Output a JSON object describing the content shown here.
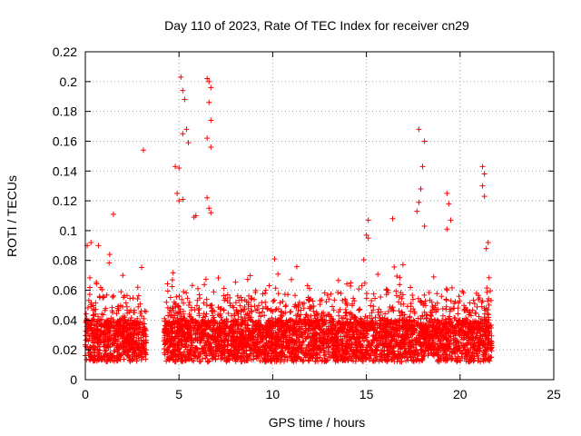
{
  "chart_data": {
    "type": "scatter",
    "title": "Day 110 of 2023, Rate Of TEC Index for receiver cn29",
    "xlabel": "GPS time / hours",
    "ylabel": "ROTI / TECUs",
    "xlim": [
      0,
      25
    ],
    "ylim": [
      0,
      0.22
    ],
    "x_ticks": [
      0,
      5,
      10,
      15,
      20,
      25
    ],
    "x_tick_labels": [
      "0",
      "5",
      "10",
      "15",
      "20",
      "25"
    ],
    "y_ticks": [
      0,
      0.02,
      0.04,
      0.06,
      0.08,
      0.1,
      0.12,
      0.14,
      0.16,
      0.18,
      0.2,
      0.22
    ],
    "y_tick_labels": [
      "0",
      "0.02",
      "0.04",
      "0.06",
      "0.08",
      "0.1",
      "0.12",
      "0.14",
      "0.16",
      "0.18",
      "0.2",
      "0.22"
    ],
    "grid": true,
    "marker": "plus",
    "marker_color": "#ff0000",
    "series": [
      {
        "coverage": [
          [
            0,
            3.25
          ],
          [
            4.2,
            21.7
          ]
        ],
        "points": [
          [
            0.1,
            0.09
          ],
          [
            0.3,
            0.092
          ],
          [
            0.7,
            0.09
          ],
          [
            1.5,
            0.111
          ],
          [
            1.3,
            0.084
          ],
          [
            3.1,
            0.154
          ],
          [
            2.0,
            0.07
          ],
          [
            2.8,
            0.062
          ],
          [
            4.8,
            0.143
          ],
          [
            5.0,
            0.142
          ],
          [
            5.1,
            0.203
          ],
          [
            5.2,
            0.194
          ],
          [
            5.3,
            0.188
          ],
          [
            5.2,
            0.165
          ],
          [
            5.4,
            0.168
          ],
          [
            5.5,
            0.159
          ],
          [
            4.9,
            0.125
          ],
          [
            5.0,
            0.12
          ],
          [
            5.2,
            0.121
          ],
          [
            5.8,
            0.109
          ],
          [
            5.9,
            0.11
          ],
          [
            6.5,
            0.202
          ],
          [
            6.6,
            0.2
          ],
          [
            6.7,
            0.196
          ],
          [
            6.6,
            0.186
          ],
          [
            6.7,
            0.174
          ],
          [
            6.5,
            0.162
          ],
          [
            6.7,
            0.156
          ],
          [
            6.5,
            0.122
          ],
          [
            6.6,
            0.115
          ],
          [
            6.7,
            0.112
          ],
          [
            10.1,
            0.081
          ],
          [
            15.1,
            0.107
          ],
          [
            15.0,
            0.097
          ],
          [
            15.1,
            0.095
          ],
          [
            16.4,
            0.108
          ],
          [
            17.8,
            0.168
          ],
          [
            18.1,
            0.16
          ],
          [
            18.0,
            0.143
          ],
          [
            17.9,
            0.128
          ],
          [
            17.8,
            0.119
          ],
          [
            17.7,
            0.113
          ],
          [
            18.1,
            0.103
          ],
          [
            19.3,
            0.125
          ],
          [
            19.4,
            0.118
          ],
          [
            19.5,
            0.107
          ],
          [
            19.3,
            0.101
          ],
          [
            21.2,
            0.143
          ],
          [
            21.3,
            0.138
          ],
          [
            21.2,
            0.13
          ],
          [
            21.3,
            0.123
          ],
          [
            21.5,
            0.092
          ],
          [
            21.4,
            0.088
          ]
        ]
      }
    ]
  }
}
